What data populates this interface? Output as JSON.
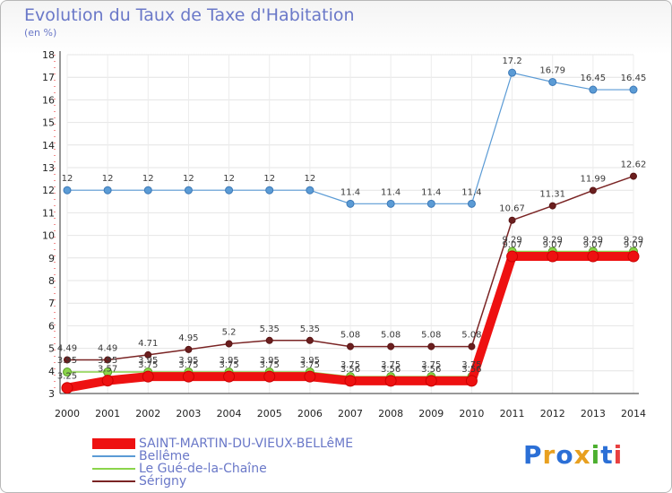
{
  "title": "Evolution du Taux de Taxe d'Habitation",
  "unit": "(en %)",
  "logo": {
    "text": "Proxiti",
    "colors": [
      "#2b6fd6",
      "#e8a020",
      "#2b6fd6",
      "#e8a020",
      "#4caf2f",
      "#2b6fd6",
      "#e84040"
    ]
  },
  "chart_data": {
    "type": "line",
    "title": "Evolution du Taux de Taxe d'Habitation",
    "ylabel": "(en %)",
    "xlabel": "",
    "x": [
      "2000",
      "2001",
      "2002",
      "2003",
      "2004",
      "2005",
      "2006",
      "2007",
      "2008",
      "2009",
      "2010",
      "2011",
      "2012",
      "2013",
      "2014"
    ],
    "ylim": [
      3,
      18
    ],
    "yticks": [
      3,
      4,
      5,
      6,
      7,
      8,
      9,
      10,
      11,
      12,
      13,
      14,
      15,
      16,
      17,
      18
    ],
    "grid": true,
    "legend_position": "bottom-left",
    "series": [
      {
        "name": "SAINT-MARTIN-DU-VIEUX-BELLêME",
        "color": "#ee1111",
        "values": [
          3.25,
          3.57,
          3.75,
          3.75,
          3.75,
          3.75,
          3.75,
          3.56,
          3.56,
          3.56,
          3.56,
          9.07,
          9.07,
          9.07,
          9.07
        ],
        "labels": [
          "3.25",
          "3.57",
          "3.75",
          "3.75",
          "3.75",
          "3.75",
          "3.75",
          "3.56",
          "3.56",
          "3.56",
          "3.56",
          "9.07",
          "9.07",
          "9.07",
          "9.07"
        ]
      },
      {
        "name": "Bellême",
        "color": "#5b9bd5",
        "values": [
          12,
          12,
          12,
          12,
          12,
          12,
          12,
          11.4,
          11.4,
          11.4,
          11.4,
          17.2,
          16.79,
          16.45,
          16.45
        ],
        "labels": [
          "12",
          "12",
          "12",
          "12",
          "12",
          "12",
          "12",
          "11.4",
          "11.4",
          "11.4",
          "11.4",
          "17.2",
          "16.79",
          "16.45",
          "16.45"
        ]
      },
      {
        "name": "Le Gué-de-la-Chaîne",
        "color": "#8bd44a",
        "values": [
          3.95,
          3.95,
          3.95,
          3.95,
          3.95,
          3.95,
          3.95,
          3.75,
          3.75,
          3.75,
          3.75,
          9.29,
          9.29,
          9.29,
          9.29
        ],
        "labels": [
          "3.95",
          "3.95",
          "3.95",
          "3.95",
          "3.95",
          "3.95",
          "3.95",
          "3.75",
          "3.75",
          "3.75",
          "3.75",
          "9.29",
          "9.29",
          "9.29",
          "9.29"
        ]
      },
      {
        "name": "Sérigny",
        "color": "#7a2424",
        "values": [
          4.49,
          4.49,
          4.71,
          4.95,
          5.2,
          5.35,
          5.35,
          5.08,
          5.08,
          5.08,
          5.08,
          10.67,
          11.31,
          11.99,
          12.62
        ],
        "labels": [
          "4.49",
          "4.49",
          "4.71",
          "4.95",
          "5.2",
          "5.35",
          "5.35",
          "5.08",
          "5.08",
          "5.08",
          "5.08",
          "10.67",
          "11.31",
          "11.99",
          "12.62"
        ]
      }
    ]
  }
}
